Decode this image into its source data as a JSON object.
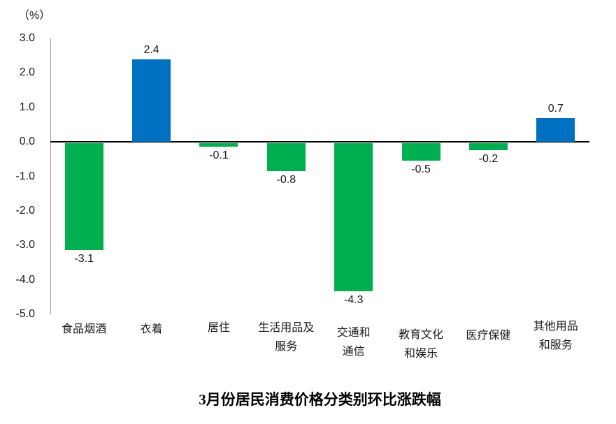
{
  "chart_data": {
    "type": "bar",
    "title": "3月份居民消费价格分类别环比涨跌幅",
    "unit_label": "（%）",
    "categories": [
      "食品烟酒",
      "衣着",
      "居住",
      "生活用品及\n服务",
      "交通和\n通信",
      "教育文化\n和娱乐",
      "医疗保健",
      "其他用品\n和服务"
    ],
    "values": [
      -3.1,
      2.4,
      -0.1,
      -0.8,
      -4.3,
      -0.5,
      -0.2,
      0.7
    ],
    "data_labels": [
      "-3.1",
      "2.4",
      "-0.1",
      "-0.8",
      "-4.3",
      "-0.5",
      "-0.2",
      "0.7"
    ],
    "xlabel": "",
    "ylabel": "",
    "ylim": [
      -5.0,
      3.0
    ],
    "ytick_step": 1.0,
    "yticks": [
      "3.0",
      "2.0",
      "1.0",
      "0.0",
      "-1.0",
      "-2.0",
      "-3.0",
      "-4.0",
      "-5.0"
    ],
    "ytick_values": [
      3,
      2,
      1,
      0,
      -1,
      -2,
      -3,
      -4,
      -5
    ],
    "grid": false,
    "legend": "none",
    "colors": {
      "positive": "#0070C0",
      "negative": "#00B050",
      "axis_line": "#9a9a9a",
      "zero_line": "#000000",
      "text": "#1a1a1a"
    }
  }
}
